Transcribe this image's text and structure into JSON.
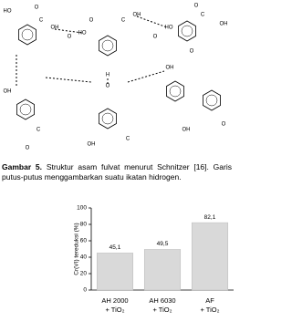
{
  "figure": {
    "caption": {
      "label": "Gambar 5.",
      "text": "Struktur asam fulvat menurut Schnitzer [16]. Garis putus-putus menggambarkan suatu ikatan hidrogen."
    }
  },
  "diagram": {
    "labels": [
      "HO",
      "O",
      "C",
      "OH",
      "O",
      "HO",
      "O",
      "C",
      "OH",
      "O",
      "HO",
      "O",
      "C",
      "OH",
      "O",
      "H",
      "O",
      "OH",
      "C",
      "O",
      "OH",
      "C",
      "OH",
      "OH",
      "O"
    ]
  },
  "chart_data": {
    "type": "bar",
    "y_label": "Cr(VI) tereduksi (%)",
    "categories": [
      "AH 2000 + TiO₂",
      "AH 6030 + TiO₂",
      "AF + TiO₂"
    ],
    "values": [
      45.1,
      49.5,
      82.1
    ],
    "value_labels": [
      "45,1",
      "49,5",
      "82,1"
    ],
    "color": "#d9d9d9",
    "ylim": [
      0,
      100
    ],
    "yticks": [
      0,
      20,
      40,
      60,
      80,
      100
    ],
    "grid": false
  }
}
